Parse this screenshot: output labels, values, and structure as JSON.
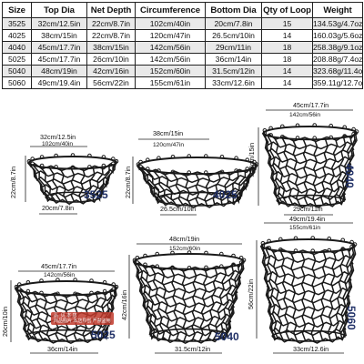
{
  "table": {
    "headers": [
      "Size",
      "Top Dia",
      "Net Depth",
      "Circumference",
      "Bottom Dia",
      "Qty of Loop",
      "Weight"
    ],
    "rows": [
      [
        "3525",
        "32cm/12.5in",
        "22cm/8.7in",
        "102cm/40in",
        "20cm/7.8in",
        "15",
        "134.53g/4.7oz"
      ],
      [
        "4025",
        "38cm/15in",
        "22cm/8.7in",
        "120cm/47in",
        "26.5cm/10in",
        "14",
        "160.03g/5.6oz"
      ],
      [
        "4040",
        "45cm/17.7in",
        "38cm/15in",
        "142cm/56in",
        "29cm/11in",
        "18",
        "258.38g/9.1oz"
      ],
      [
        "5025",
        "45cm/17.7in",
        "26cm/10in",
        "142cm/56in",
        "36cm/14in",
        "18",
        "208.88g/7.4oz"
      ],
      [
        "5040",
        "48cm/19in",
        "42cm/16in",
        "152cm/60in",
        "31.5cm/12in",
        "14",
        "323.68g/11.4oz"
      ],
      [
        "5060",
        "49cm/19.4in",
        "56cm/22in",
        "155cm/61in",
        "33cm/12.6in",
        "14",
        "359.11g/12.7oz"
      ]
    ]
  },
  "nets": {
    "n3525": {
      "model": "3525",
      "top": "32cm/12.5in",
      "circ": "102cm/40in",
      "depth": "22cm/8.7in",
      "bottom": "20cm/7.8in"
    },
    "n4025": {
      "model": "4025",
      "top": "38cm/15in",
      "circ": "120cm/47in",
      "depth": "22cm/8.7in",
      "bottom": "26.5cm/10in"
    },
    "n4040": {
      "model": "4040",
      "top": "45cm/17.7in",
      "circ": "142cm/56in",
      "depth": "38cm/15in",
      "bottom": "29cm/11in"
    },
    "n5025": {
      "model": "5025",
      "top": "45cm/17.7in",
      "circ": "142cm/56in",
      "depth": "26cm/10in",
      "bottom": "36cm/14in"
    },
    "n5040": {
      "model": "5040",
      "top": "48cm/19in",
      "circ": "152cm/60in",
      "depth": "42cm/16in",
      "bottom": "31.5cm/12in"
    },
    "n5060": {
      "model": "5060",
      "top": "49cm/19.4in",
      "circ": "155cm/61in",
      "depth": "56cm/22in",
      "bottom": "33cm/12.6in"
    }
  },
  "watermark": "品  贝 本 店\n商品图片 本店原创 严禁盗用",
  "colors": {
    "model_text": "#1f2f66",
    "net_stroke": "#1a1a1a",
    "row_shade": "#e9e9e9"
  }
}
